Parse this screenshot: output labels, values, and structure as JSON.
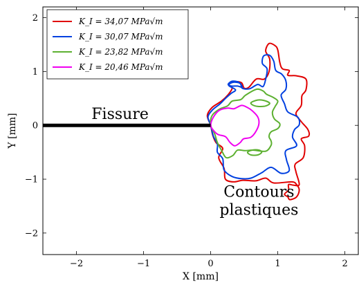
{
  "chart_data": {
    "type": "line",
    "xlabel": "X [mm]",
    "ylabel": "Y [mm]",
    "xlim": [
      -2.5,
      2.2
    ],
    "ylim": [
      -2.4,
      2.2
    ],
    "x_ticks": [
      -2,
      -1,
      0,
      1,
      2
    ],
    "y_ticks": [
      -2,
      -1,
      0,
      1,
      2
    ],
    "x_tick_labels": [
      "−2",
      "−1",
      "0",
      "1",
      "2"
    ],
    "y_tick_labels": [
      "−2",
      "−1",
      "0",
      "1",
      "2"
    ],
    "legend_position": "top-left",
    "series": [
      {
        "name": "K_I = 34,07 MPa√m",
        "color": "#e00000",
        "points": [
          [
            0.0,
            0.0
          ],
          [
            -0.05,
            0.18
          ],
          [
            0.02,
            0.33
          ],
          [
            0.16,
            0.45
          ],
          [
            0.26,
            0.57
          ],
          [
            0.32,
            0.69
          ],
          [
            0.27,
            0.76
          ],
          [
            0.36,
            0.81
          ],
          [
            0.46,
            0.79
          ],
          [
            0.5,
            0.69
          ],
          [
            0.57,
            0.71
          ],
          [
            0.68,
            0.86
          ],
          [
            0.8,
            0.86
          ],
          [
            0.87,
            1.0
          ],
          [
            0.88,
            1.23
          ],
          [
            0.82,
            1.38
          ],
          [
            0.87,
            1.52
          ],
          [
            0.96,
            1.48
          ],
          [
            1.0,
            1.4
          ],
          [
            1.03,
            1.17
          ],
          [
            1.07,
            1.05
          ],
          [
            1.17,
            1.02
          ],
          [
            1.15,
            0.93
          ],
          [
            1.28,
            0.92
          ],
          [
            1.42,
            0.86
          ],
          [
            1.42,
            0.66
          ],
          [
            1.36,
            0.55
          ],
          [
            1.35,
            0.37
          ],
          [
            1.27,
            0.22
          ],
          [
            1.35,
            0.07
          ],
          [
            1.45,
            -0.08
          ],
          [
            1.46,
            -0.2
          ],
          [
            1.35,
            -0.25
          ],
          [
            1.4,
            -0.38
          ],
          [
            1.38,
            -0.6
          ],
          [
            1.26,
            -0.72
          ],
          [
            1.27,
            -0.86
          ],
          [
            1.32,
            -1.1
          ],
          [
            1.23,
            -1.11
          ],
          [
            1.16,
            -1.1
          ],
          [
            1.16,
            -1.2
          ],
          [
            1.1,
            -1.28
          ],
          [
            1.15,
            -1.33
          ],
          [
            1.18,
            -1.38
          ],
          [
            1.28,
            -1.33
          ],
          [
            1.32,
            -1.2
          ],
          [
            1.28,
            -1.1
          ],
          [
            1.21,
            -1.05
          ],
          [
            0.94,
            -1.07
          ],
          [
            0.82,
            -0.98
          ],
          [
            0.67,
            -1.03
          ],
          [
            0.48,
            -1.02
          ],
          [
            0.34,
            -1.05
          ],
          [
            0.22,
            -1.0
          ],
          [
            0.2,
            -0.8
          ],
          [
            0.12,
            -0.6
          ],
          [
            0.18,
            -0.43
          ],
          [
            0.08,
            -0.32
          ],
          [
            0.03,
            -0.18
          ],
          [
            0.0,
            0.0
          ]
        ]
      },
      {
        "name": "K_I = 30,07 MPa√m",
        "color": "#0040e0",
        "points": [
          [
            0.0,
            0.0
          ],
          [
            -0.04,
            0.16
          ],
          [
            0.03,
            0.29
          ],
          [
            0.14,
            0.4
          ],
          [
            0.22,
            0.5
          ],
          [
            0.3,
            0.59
          ],
          [
            0.37,
            0.66
          ],
          [
            0.27,
            0.74
          ],
          [
            0.33,
            0.8
          ],
          [
            0.44,
            0.78
          ],
          [
            0.47,
            0.69
          ],
          [
            0.58,
            0.68
          ],
          [
            0.7,
            0.76
          ],
          [
            0.78,
            0.72
          ],
          [
            0.82,
            0.86
          ],
          [
            0.84,
            1.05
          ],
          [
            0.77,
            1.15
          ],
          [
            0.79,
            1.29
          ],
          [
            0.88,
            1.3
          ],
          [
            0.94,
            1.19
          ],
          [
            0.97,
            1.02
          ],
          [
            1.06,
            0.95
          ],
          [
            1.12,
            0.83
          ],
          [
            1.12,
            0.67
          ],
          [
            1.05,
            0.56
          ],
          [
            1.1,
            0.4
          ],
          [
            1.15,
            0.25
          ],
          [
            1.3,
            0.15
          ],
          [
            1.32,
            0.01
          ],
          [
            1.25,
            -0.08
          ],
          [
            1.22,
            -0.22
          ],
          [
            1.28,
            -0.38
          ],
          [
            1.12,
            -0.47
          ],
          [
            1.13,
            -0.64
          ],
          [
            1.17,
            -0.84
          ],
          [
            1.05,
            -0.89
          ],
          [
            0.9,
            -0.78
          ],
          [
            0.76,
            -0.88
          ],
          [
            0.6,
            -0.98
          ],
          [
            0.46,
            -0.99
          ],
          [
            0.32,
            -0.95
          ],
          [
            0.2,
            -0.83
          ],
          [
            0.18,
            -0.62
          ],
          [
            0.1,
            -0.5
          ],
          [
            0.1,
            -0.35
          ],
          [
            0.04,
            -0.2
          ],
          [
            0.0,
            0.0
          ]
        ]
      },
      {
        "name": "K_I = 23,82 MPa√m",
        "color": "#5cb030",
        "points": [
          [
            0.0,
            0.0
          ],
          [
            0.02,
            0.18
          ],
          [
            0.13,
            0.3
          ],
          [
            0.25,
            0.36
          ],
          [
            0.32,
            0.45
          ],
          [
            0.45,
            0.48
          ],
          [
            0.52,
            0.56
          ],
          [
            0.68,
            0.67
          ],
          [
            0.78,
            0.64
          ],
          [
            0.83,
            0.58
          ],
          [
            0.93,
            0.52
          ],
          [
            1.0,
            0.45
          ],
          [
            0.96,
            0.35
          ],
          [
            0.92,
            0.24
          ],
          [
            0.95,
            0.12
          ],
          [
            1.03,
            0.03
          ],
          [
            1.0,
            -0.06
          ],
          [
            0.9,
            -0.12
          ],
          [
            0.87,
            -0.21
          ],
          [
            0.9,
            -0.29
          ],
          [
            0.9,
            -0.37
          ],
          [
            0.82,
            -0.48
          ],
          [
            0.63,
            -0.46
          ],
          [
            0.51,
            -0.47
          ],
          [
            0.4,
            -0.46
          ],
          [
            0.33,
            -0.56
          ],
          [
            0.23,
            -0.6
          ],
          [
            0.16,
            -0.46
          ],
          [
            0.1,
            -0.32
          ],
          [
            0.06,
            -0.16
          ],
          [
            0.0,
            0.0
          ]
        ]
      },
      {
        "name": "K_I = 20,46 MPa√m",
        "color": "#f000f0",
        "points": [
          [
            0.0,
            0.0
          ],
          [
            0.04,
            0.15
          ],
          [
            0.13,
            0.28
          ],
          [
            0.25,
            0.32
          ],
          [
            0.35,
            0.31
          ],
          [
            0.46,
            0.37
          ],
          [
            0.55,
            0.33
          ],
          [
            0.62,
            0.27
          ],
          [
            0.7,
            0.16
          ],
          [
            0.72,
            0.04
          ],
          [
            0.68,
            -0.1
          ],
          [
            0.6,
            -0.22
          ],
          [
            0.49,
            -0.25
          ],
          [
            0.44,
            -0.32
          ],
          [
            0.36,
            -0.38
          ],
          [
            0.29,
            -0.32
          ],
          [
            0.22,
            -0.21
          ],
          [
            0.11,
            -0.17
          ],
          [
            0.04,
            -0.09
          ],
          [
            0.0,
            0.0
          ]
        ]
      }
    ],
    "islands": [
      {
        "series": "K_I = 23,82 MPa√m",
        "points": [
          [
            0.6,
            0.42
          ],
          [
            0.7,
            0.47
          ],
          [
            0.8,
            0.46
          ],
          [
            0.88,
            0.41
          ],
          [
            0.82,
            0.36
          ],
          [
            0.72,
            0.35
          ],
          [
            0.64,
            0.37
          ],
          [
            0.6,
            0.42
          ]
        ]
      },
      {
        "series": "K_I = 23,82 MPa√m",
        "points": [
          [
            0.55,
            -0.5
          ],
          [
            0.62,
            -0.46
          ],
          [
            0.72,
            -0.46
          ],
          [
            0.76,
            -0.5
          ],
          [
            0.7,
            -0.55
          ],
          [
            0.6,
            -0.55
          ],
          [
            0.55,
            -0.5
          ]
        ]
      },
      {
        "series": "K_I = 30,07 MPa√m",
        "points": [
          [
            0.26,
            0.76
          ],
          [
            0.32,
            0.82
          ],
          [
            0.42,
            0.8
          ],
          [
            0.47,
            0.71
          ],
          [
            0.4,
            0.73
          ],
          [
            0.31,
            0.73
          ],
          [
            0.26,
            0.76
          ]
        ]
      }
    ],
    "crack": {
      "x": [
        -2.5,
        0.0
      ],
      "y": [
        0.0,
        0.0
      ],
      "color": "#000000"
    },
    "annotations": [
      {
        "text": "Fissure",
        "x": -1.35,
        "y": 0.12
      },
      {
        "text": "Contours",
        "x": 0.72,
        "y": -1.33
      },
      {
        "text": "plastiques",
        "x": 0.72,
        "y": -1.66
      }
    ]
  }
}
